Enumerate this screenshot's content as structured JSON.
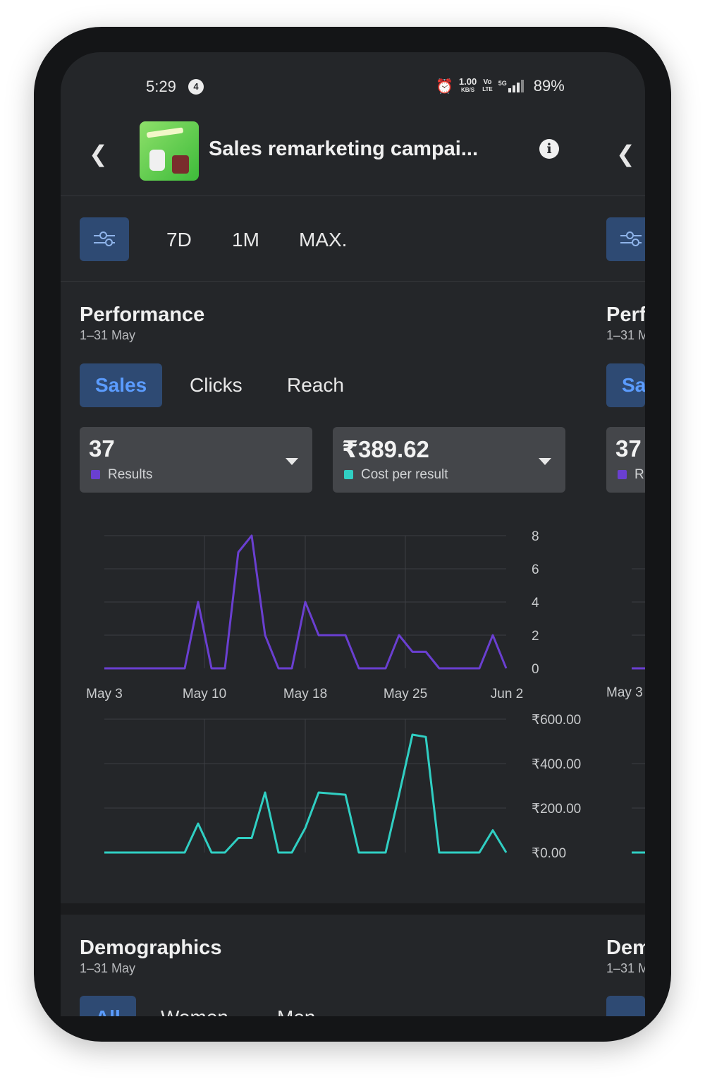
{
  "status_bar": {
    "time": "5:29",
    "notification_count": "4",
    "net_speed_value": "1.00",
    "net_speed_unit": "KB/S",
    "volte_top": "Vo",
    "volte_bottom": "LTE",
    "network": "5G",
    "battery": "89%"
  },
  "header": {
    "title": "Sales remarketing campai..."
  },
  "filters": {
    "ranges": [
      "7D",
      "1M",
      "MAX."
    ]
  },
  "performance": {
    "title": "Performance",
    "date_range": "1–31 May",
    "tabs": [
      "Sales",
      "Clicks",
      "Reach"
    ],
    "active_tab": "Sales",
    "metrics": [
      {
        "value": "37",
        "label": "Results",
        "color": "#6a3fd1"
      },
      {
        "value": "₹389.62",
        "label": "Cost per result",
        "color": "#30cfc3"
      }
    ]
  },
  "chart_data": [
    {
      "type": "line",
      "series": [
        {
          "name": "Results",
          "color": "#6a3fd1",
          "values": [
            0,
            0,
            0,
            0,
            0,
            0,
            0,
            4,
            0,
            0,
            7,
            8,
            2,
            0,
            0,
            4,
            2,
            2,
            2,
            0,
            0,
            0,
            2,
            1,
            1,
            0,
            0,
            0,
            0,
            2,
            0
          ]
        }
      ],
      "x_tick_labels": [
        "May 3",
        "May 10",
        "May 18",
        "May 25",
        "Jun 2"
      ],
      "y_tick_labels": [
        "8",
        "6",
        "4",
        "2",
        "0"
      ],
      "ylim": [
        0,
        8
      ],
      "grid": true
    },
    {
      "type": "line",
      "series": [
        {
          "name": "Cost per result",
          "color": "#30cfc3",
          "values": [
            0,
            0,
            0,
            0,
            0,
            0,
            0,
            130,
            0,
            0,
            65,
            65,
            270,
            0,
            0,
            110,
            270,
            265,
            260,
            0,
            0,
            0,
            260,
            530,
            520,
            0,
            0,
            0,
            0,
            100,
            0
          ]
        }
      ],
      "y_tick_labels": [
        "₹600.00",
        "₹400.00",
        "₹200.00",
        "₹0.00"
      ],
      "ylim": [
        0,
        600
      ],
      "grid": true
    }
  ],
  "demographics": {
    "title": "Demographics",
    "date_range": "1–31 May",
    "tabs": [
      "All",
      "Women",
      "Men"
    ]
  },
  "peek": {
    "perf_title": "Perf",
    "perf_date": "1–31 M",
    "tab": "Sa",
    "metric_value": "37",
    "metric_label": "R",
    "x_label": "May 3",
    "demo_title": "Dem",
    "demo_date": "1–31 M"
  }
}
